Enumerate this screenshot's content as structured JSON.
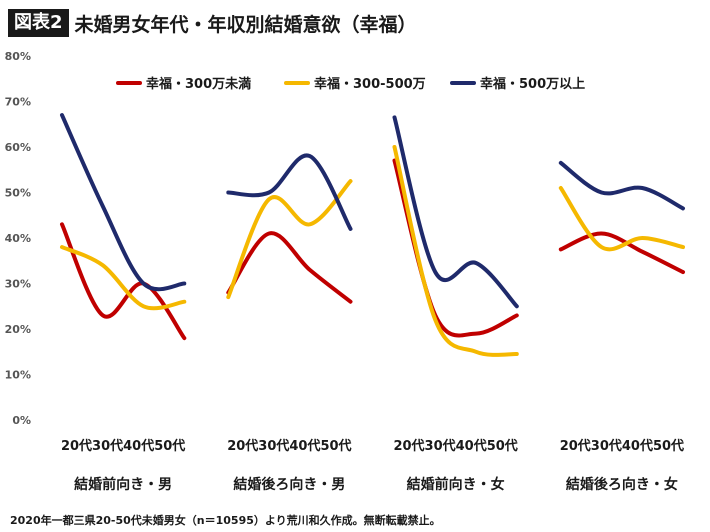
{
  "header": {
    "badge": "図表2",
    "title": "未婚男女年代・年収別結婚意欲（幸福）"
  },
  "footnote": "2020年一都三県20-50代未婚男女（n＝10595）より荒川和久作成。無断転載禁止。",
  "chart_data": {
    "type": "line",
    "title": "未婚男女年代・年収別結婚意欲（幸福）",
    "ylim": [
      0,
      80
    ],
    "yticks": [
      "0%",
      "10%",
      "20%",
      "30%",
      "40%",
      "50%",
      "60%",
      "70%",
      "80%"
    ],
    "grid": false,
    "legend_position": "top",
    "groups": [
      {
        "label": "結婚前向き・男",
        "categories": [
          "20代",
          "30代",
          "40代",
          "50代"
        ]
      },
      {
        "label": "結婚後ろ向き・男",
        "categories": [
          "20代",
          "30代",
          "40代",
          "50代"
        ]
      },
      {
        "label": "結婚前向き・女",
        "categories": [
          "20代",
          "30代",
          "40代",
          "50代"
        ]
      },
      {
        "label": "結婚後ろ向き・女",
        "categories": [
          "20代",
          "30代",
          "40代",
          "50代"
        ]
      }
    ],
    "series": [
      {
        "name": "幸福・300万未満",
        "color": "#c00000",
        "values": [
          [
            43,
            23,
            30,
            18
          ],
          [
            28,
            41,
            33,
            26
          ],
          [
            57,
            23,
            19,
            23
          ],
          [
            37.5,
            41,
            37,
            32.5
          ]
        ]
      },
      {
        "name": "幸福・300-500万",
        "color": "#f5b800",
        "values": [
          [
            38,
            34,
            25,
            26
          ],
          [
            27,
            48.5,
            43,
            52.5
          ],
          [
            60,
            22,
            15,
            14.5
          ],
          [
            51,
            38,
            40,
            38
          ]
        ]
      },
      {
        "name": "幸福・500万以上",
        "color": "#1f2a6b",
        "values": [
          [
            67,
            47,
            30,
            30
          ],
          [
            50,
            50,
            58,
            42
          ],
          [
            66.5,
            32.5,
            34.5,
            25
          ],
          [
            56.5,
            50,
            51,
            46.5
          ]
        ]
      }
    ]
  }
}
